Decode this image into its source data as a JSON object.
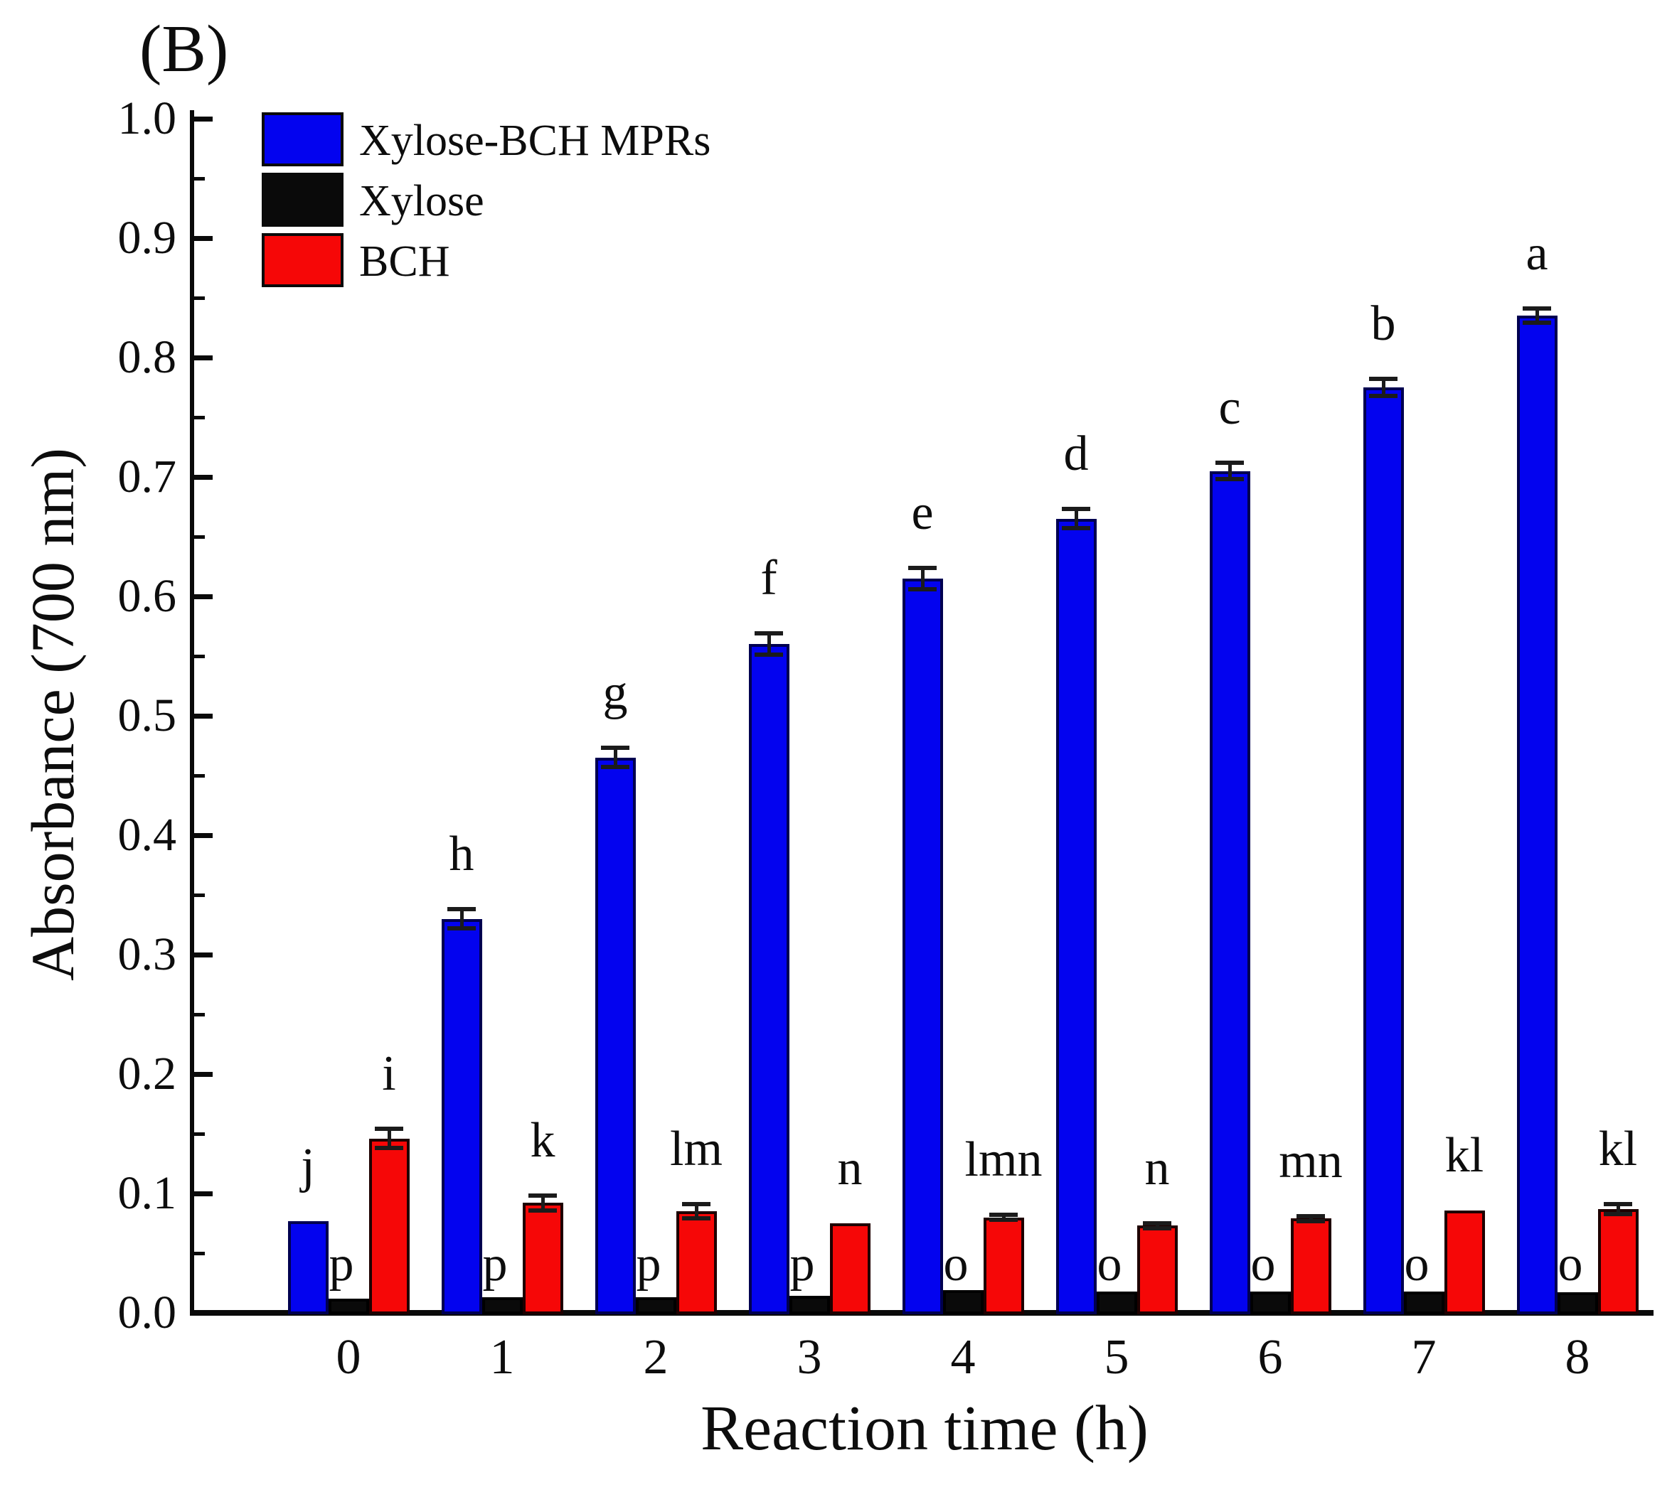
{
  "panel_label": "(B)",
  "axes": {
    "x_label": "Reaction time (h)",
    "y_label": "Absorbance (700 nm)",
    "x_ticks": [
      "0",
      "1",
      "2",
      "3",
      "4",
      "5",
      "6",
      "7",
      "8"
    ],
    "y_ticks": [
      "0.0",
      "0.1",
      "0.2",
      "0.3",
      "0.4",
      "0.5",
      "0.6",
      "0.7",
      "0.8",
      "0.9",
      "1.0"
    ]
  },
  "legend": {
    "items": [
      {
        "label": "Xylose-BCH MPRs",
        "color": "#0303EF"
      },
      {
        "label": "Xylose",
        "color": "#0a0a0a"
      },
      {
        "label": "BCH",
        "color": "#F60707"
      }
    ]
  },
  "chart_data": {
    "type": "bar",
    "title": "(B)",
    "xlabel": "Reaction time (h)",
    "ylabel": "Absorbance (700 nm)",
    "categories": [
      "0",
      "1",
      "2",
      "3",
      "4",
      "5",
      "6",
      "7",
      "8"
    ],
    "ylim": [
      0.0,
      1.0
    ],
    "y_major_tick_step": 0.1,
    "y_minor_tick_step": 0.05,
    "grid": false,
    "legend_position": "top-left",
    "series": [
      {
        "name": "Xylose-BCH MPRs",
        "color": "#0303EF",
        "edge_color": "#000050",
        "values": [
          0.077,
          0.33,
          0.465,
          0.56,
          0.615,
          0.665,
          0.705,
          0.775,
          0.835
        ],
        "errors": [
          0,
          0.008,
          0.008,
          0.009,
          0.009,
          0.008,
          0.007,
          0.007,
          0.006
        ],
        "letters": [
          "j",
          "h",
          "g",
          "f",
          "e",
          "d",
          "c",
          "b",
          "a"
        ]
      },
      {
        "name": "Xylose",
        "color": "#0a0a0a",
        "edge_color": "#000000",
        "values": [
          0.012,
          0.013,
          0.013,
          0.014,
          0.019,
          0.018,
          0.018,
          0.018,
          0.017
        ],
        "errors": [
          0,
          0,
          0,
          0,
          0,
          0,
          0,
          0,
          0
        ],
        "letters": [
          "p",
          "p",
          "p",
          "p",
          "o",
          "o",
          "o",
          "o",
          "o"
        ]
      },
      {
        "name": "BCH",
        "color": "#F60707",
        "edge_color": "#1e0000",
        "values": [
          0.146,
          0.092,
          0.085,
          0.075,
          0.08,
          0.073,
          0.079,
          0.086,
          0.087
        ],
        "errors": [
          0.008,
          0.006,
          0.006,
          0,
          0.002,
          0.002,
          0.002,
          0,
          0.004
        ],
        "letters": [
          "i",
          "k",
          "lm",
          "n",
          "lmn",
          "n",
          "mn",
          "kl",
          "kl"
        ]
      }
    ]
  }
}
